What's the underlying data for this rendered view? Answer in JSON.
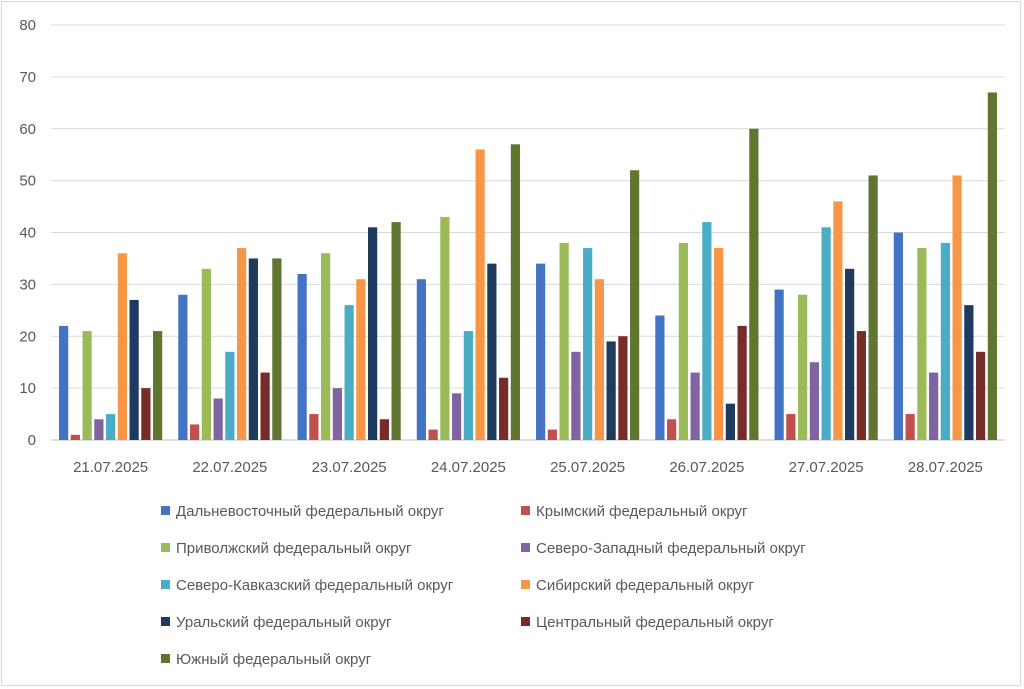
{
  "chart_data": {
    "type": "bar",
    "title": "",
    "xlabel": "",
    "ylabel": "",
    "ylim": [
      0,
      80
    ],
    "yticks": [
      0,
      10,
      20,
      30,
      40,
      50,
      60,
      70,
      80
    ],
    "grid": true,
    "legend_position": "bottom",
    "categories": [
      "21.07.2025",
      "22.07.2025",
      "23.07.2025",
      "24.07.2025",
      "25.07.2025",
      "26.07.2025",
      "27.07.2025",
      "28.07.2025"
    ],
    "series": [
      {
        "name": "Дальневосточный федеральный округ",
        "color": "#4472C4",
        "values": [
          22,
          28,
          32,
          31,
          34,
          24,
          29,
          40
        ]
      },
      {
        "name": "Крымский федеральный округ",
        "color": "#C0504D",
        "values": [
          1,
          3,
          5,
          2,
          2,
          4,
          5,
          5
        ]
      },
      {
        "name": "Приволжский федеральный округ",
        "color": "#9BBB59",
        "values": [
          21,
          33,
          36,
          43,
          38,
          38,
          28,
          37
        ]
      },
      {
        "name": "Северо-Западный федеральный округ",
        "color": "#8064A2",
        "values": [
          4,
          8,
          10,
          9,
          17,
          13,
          15,
          13
        ]
      },
      {
        "name": "Северо-Кавказский федеральный округ",
        "color": "#4BACC6",
        "values": [
          5,
          17,
          26,
          21,
          37,
          42,
          41,
          38
        ]
      },
      {
        "name": "Сибирский федеральный округ",
        "color": "#F79646",
        "values": [
          36,
          37,
          31,
          56,
          31,
          37,
          46,
          51
        ]
      },
      {
        "name": "Уральский федеральный округ",
        "color": "#1F3A5F",
        "values": [
          27,
          35,
          41,
          34,
          19,
          7,
          33,
          26
        ]
      },
      {
        "name": "Центральный федеральный округ",
        "color": "#772C2A",
        "values": [
          10,
          13,
          4,
          12,
          20,
          22,
          21,
          17
        ]
      },
      {
        "name": "Южный федеральный округ",
        "color": "#5F7530",
        "values": [
          21,
          35,
          42,
          57,
          52,
          60,
          51,
          67
        ]
      }
    ]
  }
}
